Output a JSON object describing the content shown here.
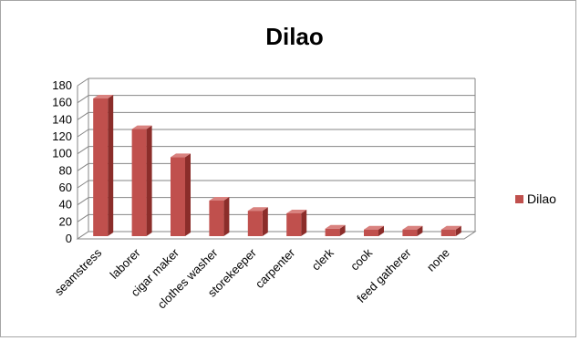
{
  "chart_data": {
    "type": "bar",
    "title": "Dilao",
    "xlabel": "",
    "ylabel": "",
    "categories": [
      "seamstress",
      "laborer",
      "cigar maker",
      "clothes washer",
      "storekeeper",
      "carpenter",
      "clerk",
      "cook",
      "feed gatherer",
      "none"
    ],
    "series": [
      {
        "name": "Dilao",
        "values": [
          165,
          129,
          96,
          45,
          33,
          30,
          12,
          11,
          11,
          11
        ]
      }
    ],
    "ylim": [
      0,
      180
    ],
    "yticks": [
      0,
      20,
      40,
      60,
      80,
      100,
      120,
      140,
      160,
      180
    ],
    "grid": true,
    "legend": "right",
    "three_d": true,
    "colors": {
      "bar_front": "#c0504d",
      "bar_side": "#8b2d2a",
      "bar_top": "#d9827f",
      "grid": "#868686"
    }
  }
}
